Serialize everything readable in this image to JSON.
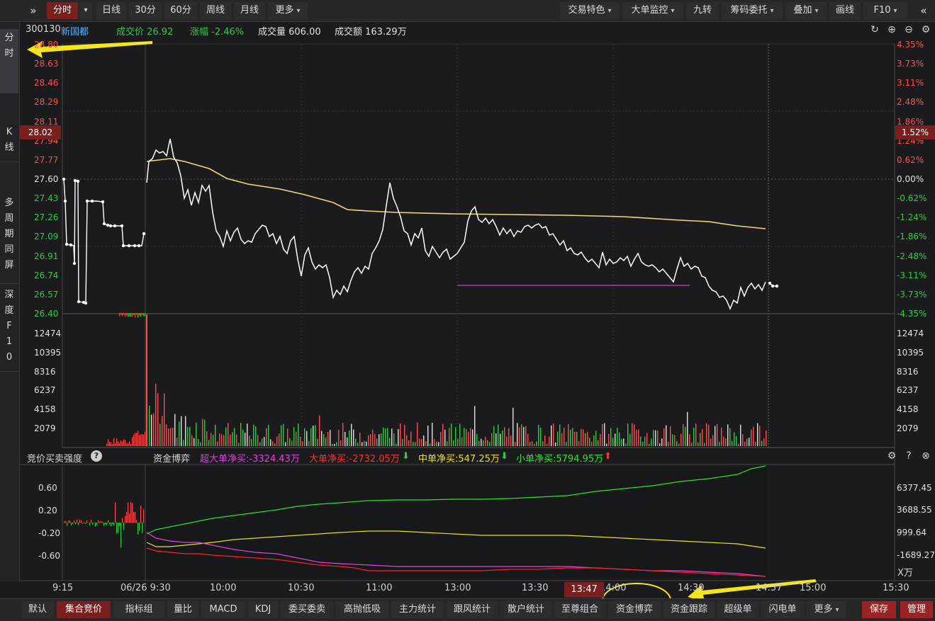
{
  "topbar": {
    "expand_icon": "double-chevron-right-icon",
    "tabs": [
      "分时",
      "日线",
      "30分",
      "60分",
      "周线",
      "月线",
      "更多"
    ],
    "right_buttons": [
      "交易特色",
      "大单监控",
      "九转",
      "筹码委托",
      "叠加",
      "画线",
      "F10"
    ],
    "collapse_icon": "double-chevron-left-icon"
  },
  "left_tabs": [
    "分\n时",
    "K\n线",
    "多\n周\n期\n同\n屏",
    "深\n度\nF\n1\n0"
  ],
  "info": {
    "code": "300130",
    "name": "新国都",
    "price_label": "成交价 26.92",
    "change_label": "涨幅 -2.46%",
    "volume_label": "成交量 606.00",
    "amount_label": "成交额 163.29万"
  },
  "price_axis_left": [
    "28.80",
    "28.63",
    "28.46",
    "28.29",
    "28.11",
    "27.94",
    "27.77",
    "27.60",
    "27.43",
    "27.26",
    "27.09",
    "26.91",
    "26.74",
    "26.57",
    "26.40"
  ],
  "price_axis_right": [
    "4.35%",
    "3.73%",
    "3.11%",
    "2.48%",
    "1.86%",
    "1.24%",
    "0.62%",
    "0.00%",
    "-0.62%",
    "-1.24%",
    "-1.86%",
    "-2.48%",
    "-3.11%",
    "-3.73%",
    "-4.35%"
  ],
  "cursor_price": "28.02",
  "cursor_pct": "1.52%",
  "volume_axis": [
    "12474",
    "10395",
    "8316",
    "6237",
    "4158",
    "2079"
  ],
  "indicator": {
    "left_title": "竞价买卖强度",
    "help_icon": "question-circle-icon",
    "name": "资金博弈",
    "super_label": "超大单净买:-3324.43万",
    "big_label": "大单净买:-2732.05万",
    "mid_label": "中单净买:547.25万",
    "small_label": "小单净买:5794.95万",
    "left_axis": [
      "0.60",
      "0.20",
      "-0.20",
      "-0.60"
    ],
    "right_axis": [
      "6377.45",
      "3688.55",
      "999.64",
      "-1689.27"
    ],
    "unit": "X万"
  },
  "time_axis": [
    "9:15",
    "06/26 9:30",
    "10:00",
    "10:30",
    "11:00",
    "13:00",
    "13:30",
    "14:00",
    "14:30",
    "14:57",
    "15:00",
    "15:30"
  ],
  "cursor_time": "13:47",
  "bottom_tabs": [
    "默认",
    "集合竞价",
    "指标组",
    "量比",
    "MACD",
    "KDJ",
    "委买委卖",
    "高抛低吸",
    "主力统计",
    "跟风统计",
    "散户统计",
    "至尊组合",
    "资金博弈",
    "资金跟踪",
    "超级单",
    "闪电单",
    "更多"
  ],
  "bottom_right": [
    "保存",
    "管理"
  ],
  "colors": {
    "up": "#ff4d4d",
    "down": "#2ecc40",
    "avg": "#f0d878",
    "super": "#e040e0",
    "big": "#ff2020",
    "mid": "#e8e020",
    "small": "#30e030",
    "annotation": "#f5e51e"
  }
}
